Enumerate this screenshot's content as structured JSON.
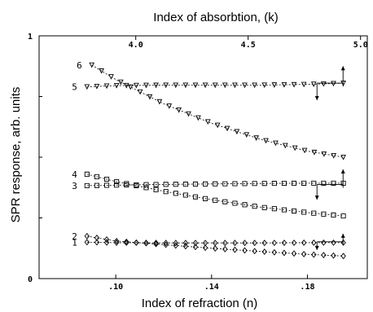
{
  "chart_data": {
    "type": "line",
    "title_top": "Index of absorbtion, (k)",
    "xlabel": "Index of refraction (n)",
    "ylabel": "SPR response, arb. units",
    "x_ticks": [
      ".10",
      ".14",
      ".18"
    ],
    "x_tick_values": [
      0.1,
      0.14,
      0.18
    ],
    "x2_ticks": [
      "4.0",
      "4.5",
      "5.0"
    ],
    "x2_tick_values": [
      4.0,
      4.5,
      5.0
    ],
    "y_ticks": [
      "0",
      "1"
    ],
    "y_tick_values": [
      0,
      1
    ],
    "xlim": [
      0.068,
      0.205
    ],
    "x2lim": [
      3.57,
      5.03
    ],
    "ylim": [
      0,
      1
    ],
    "grid": false,
    "series": [
      {
        "name": "1",
        "marker": "diamond",
        "axis": "n",
        "x": [
          0.088,
          0.1,
          0.12,
          0.14,
          0.16,
          0.18,
          0.195
        ],
        "y": [
          0.15,
          0.148,
          0.147,
          0.147,
          0.147,
          0.148,
          0.148
        ]
      },
      {
        "name": "2",
        "marker": "diamond",
        "axis": "n",
        "x": [
          0.088,
          0.1,
          0.12,
          0.14,
          0.16,
          0.18,
          0.195
        ],
        "y": [
          0.175,
          0.155,
          0.14,
          0.125,
          0.112,
          0.1,
          0.093
        ]
      },
      {
        "name": "3",
        "marker": "square",
        "axis": "n",
        "x": [
          0.088,
          0.1,
          0.12,
          0.14,
          0.16,
          0.18,
          0.195
        ],
        "y": [
          0.383,
          0.385,
          0.388,
          0.39,
          0.392,
          0.393,
          0.393
        ]
      },
      {
        "name": "4",
        "marker": "square",
        "axis": "n",
        "x": [
          0.088,
          0.1,
          0.12,
          0.14,
          0.16,
          0.18,
          0.195
        ],
        "y": [
          0.43,
          0.4,
          0.36,
          0.325,
          0.295,
          0.272,
          0.258
        ]
      },
      {
        "name": "5",
        "marker": "triangle-down",
        "axis": "n",
        "x": [
          0.088,
          0.1,
          0.12,
          0.14,
          0.16,
          0.18,
          0.195
        ],
        "y": [
          0.79,
          0.795,
          0.797,
          0.797,
          0.797,
          0.8,
          0.805
        ]
      },
      {
        "name": "6",
        "marker": "triangle-down",
        "axis": "n",
        "x": [
          0.09,
          0.1,
          0.12,
          0.14,
          0.16,
          0.18,
          0.195
        ],
        "y": [
          0.88,
          0.82,
          0.72,
          0.64,
          0.575,
          0.525,
          0.5
        ]
      }
    ],
    "arrows": [
      {
        "pair": "1-2",
        "x": 0.184,
        "up": 0.185,
        "down": 0.118
      },
      {
        "pair": "3-4",
        "x": 0.184,
        "up": 0.45,
        "down": 0.325
      },
      {
        "pair": "5-6",
        "x": 0.184,
        "up": 0.875,
        "down": 0.735
      }
    ]
  }
}
